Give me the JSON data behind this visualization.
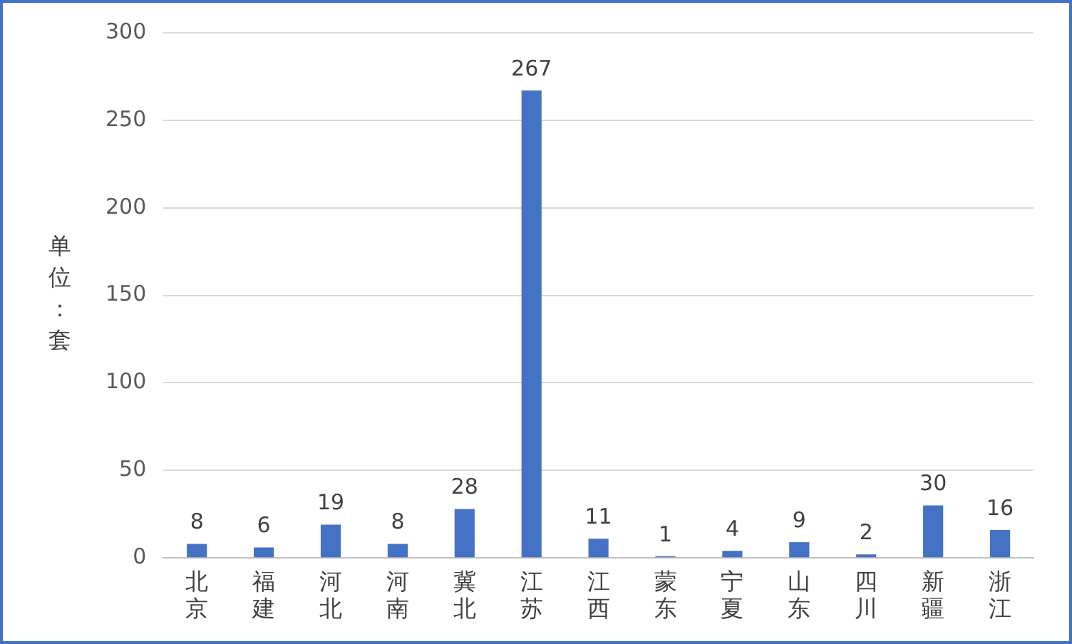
{
  "chart_data": {
    "type": "bar",
    "ylabel": "单位：套",
    "categories": [
      "北京",
      "福建",
      "河北",
      "河南",
      "冀北",
      "江苏",
      "江西",
      "蒙东",
      "宁夏",
      "山东",
      "四川",
      "新疆",
      "浙江"
    ],
    "values": [
      8,
      6,
      19,
      8,
      28,
      267,
      11,
      1,
      4,
      9,
      2,
      30,
      16
    ],
    "color": "#4472c4",
    "ylim": [
      0,
      300
    ],
    "yticks": [
      0,
      50,
      100,
      150,
      200,
      250,
      300
    ],
    "grid": "y",
    "data_labels": true,
    "legend": false
  }
}
